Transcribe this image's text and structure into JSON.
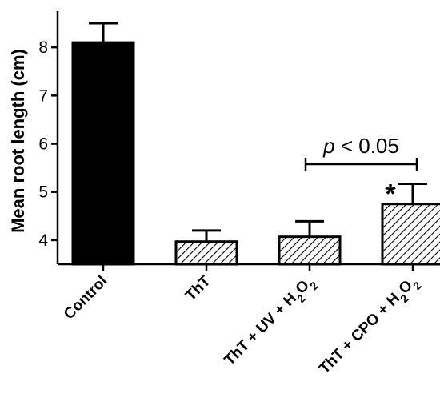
{
  "chart_data": {
    "type": "bar",
    "title": "",
    "xlabel": "",
    "ylabel": "Mean root length  (cm)",
    "ylim": [
      3.5,
      8.75
    ],
    "yticks": [
      4,
      5,
      6,
      7,
      8
    ],
    "grid": false,
    "categories": [
      {
        "name": "Control",
        "label": [
          {
            "t": "Control",
            "s": false
          }
        ]
      },
      {
        "name": "ThT",
        "label": [
          {
            "t": "ThT",
            "s": false
          }
        ]
      },
      {
        "name": "ThT + UV + H2O2",
        "label": [
          {
            "t": "ThT + UV + H",
            "s": false
          },
          {
            "t": "2",
            "s": true
          },
          {
            "t": "O",
            "s": false
          },
          {
            "t": "2",
            "s": true
          }
        ]
      },
      {
        "name": "ThT + CPO + H2O2",
        "label": [
          {
            "t": "ThT + CPO + H",
            "s": false
          },
          {
            "t": "2",
            "s": true
          },
          {
            "t": "O",
            "s": false
          },
          {
            "t": "2",
            "s": true
          }
        ]
      }
    ],
    "values": [
      8.1,
      3.97,
      4.07,
      4.75
    ],
    "errors": [
      0.4,
      0.23,
      0.32,
      0.42
    ],
    "fills": [
      "solid",
      "hatched",
      "hatched",
      "hatched"
    ],
    "colors": {
      "bar_solid": "#000000",
      "bar_outline": "#000000",
      "hatch": "#000000"
    },
    "annotations": {
      "significance_bracket": {
        "from": 2,
        "to": 3,
        "p_italic": "p",
        "text": " < 0.05"
      },
      "star": {
        "bar": 3,
        "text": "*"
      }
    }
  }
}
